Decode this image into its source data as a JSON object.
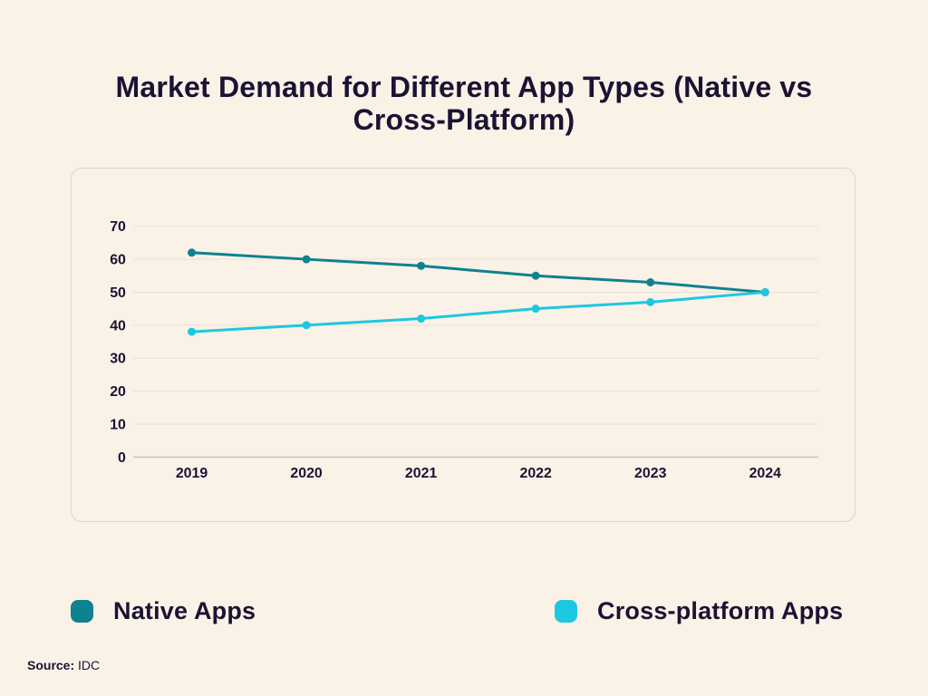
{
  "page": {
    "background_color": "#FAF1E7",
    "text_color": "#1B1333"
  },
  "title": {
    "full": "Market Demand for Different App Types (Native vs Cross-Platform)",
    "lines": [
      "Market Demand for Different App Types (Native vs",
      "Cross-Platform)"
    ]
  },
  "chart_data": {
    "type": "line",
    "title": "Market Demand for Different App Types (Native vs Cross-Platform)",
    "x_labels": [
      "2019",
      "2020",
      "2021",
      "2022",
      "2023",
      "2024"
    ],
    "series": [
      {
        "name": "Native Apps",
        "color": "#0E8290",
        "values": [
          62,
          60,
          58,
          55,
          53,
          50
        ]
      },
      {
        "name": "Cross-platform Apps",
        "color": "#1CC8DF",
        "values": [
          38,
          40,
          42,
          45,
          47,
          50
        ]
      }
    ],
    "ylim": [
      0,
      70
    ],
    "y_ticks": [
      0,
      10,
      20,
      30,
      40,
      50,
      60,
      70
    ],
    "grid": "horizontal only",
    "grid_color": "#E8E1D8",
    "axis_line_color": "#C9C3BB",
    "legend_position": "bottom"
  },
  "legend": {
    "items": [
      {
        "label": "Native Apps",
        "color": "#0E8290"
      },
      {
        "label": "Cross-platform Apps",
        "color": "#1CC8DF"
      }
    ]
  },
  "source": {
    "label": "Source:",
    "value": "IDC"
  }
}
